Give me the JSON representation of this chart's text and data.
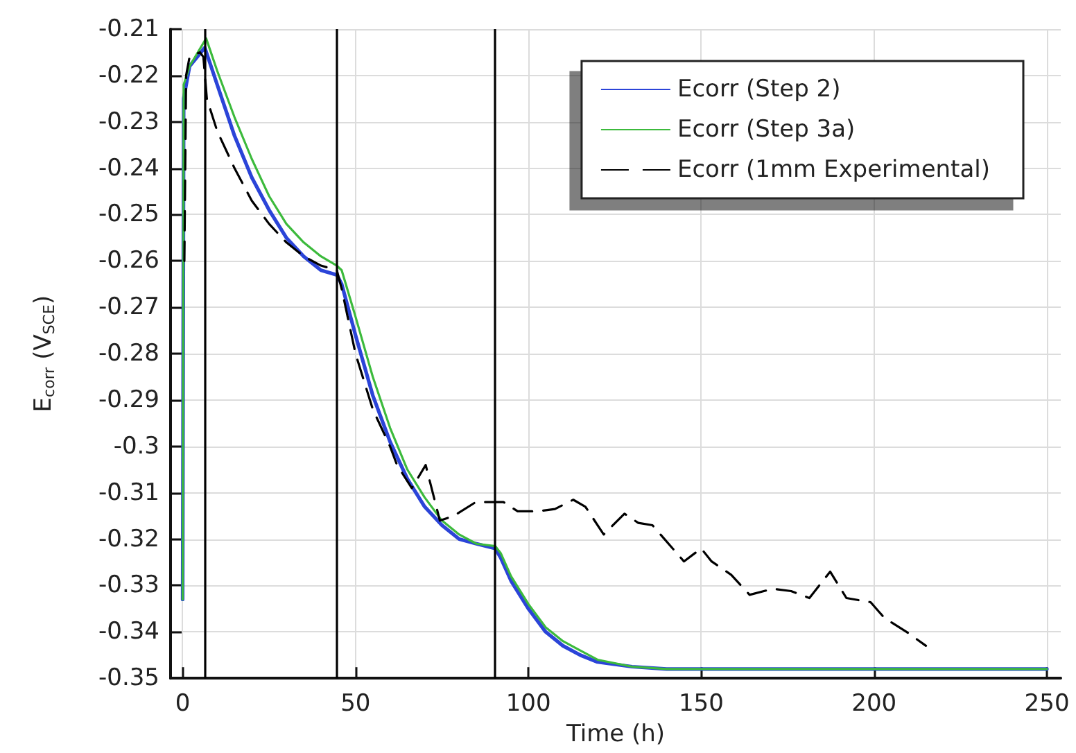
{
  "chart_data": {
    "type": "line",
    "xlabel": "Time (h)",
    "ylabel": "E$_{corr}$ (V$_{SCE}$)",
    "xlim": [
      -3.5,
      254
    ],
    "xticks": [
      0,
      50,
      100,
      150,
      200,
      250
    ],
    "ylim": [
      -0.35,
      -0.21
    ],
    "yticks": [
      -0.35,
      -0.34,
      -0.33,
      -0.32,
      -0.31,
      -0.3,
      -0.29,
      -0.28,
      -0.27,
      -0.26,
      -0.25,
      -0.24,
      -0.23,
      -0.22,
      -0.21
    ],
    "grid": true,
    "legend": "top right",
    "marker": "none",
    "ref_lines": [
      {
        "axis": "x",
        "value": 6.4,
        "color": "#000000"
      },
      {
        "axis": "x",
        "value": 44.6,
        "color": "#000000"
      },
      {
        "axis": "x",
        "value": 90.4,
        "color": "#000000"
      }
    ],
    "series": [
      {
        "name": "Ecorr (Step 2)",
        "color": "#2b44d8",
        "line_style": "solid",
        "x": [
          0,
          0.3,
          2,
          6.4,
          10,
          15,
          20,
          25,
          30,
          35,
          40,
          44.6,
          46,
          50,
          55,
          60,
          65,
          70,
          75,
          80,
          85,
          90.4,
          92,
          95,
          100,
          105,
          110,
          115,
          120,
          130,
          140,
          250
        ],
        "values": [
          -0.333,
          -0.225,
          -0.218,
          -0.214,
          -0.222,
          -0.233,
          -0.242,
          -0.249,
          -0.255,
          -0.259,
          -0.262,
          -0.263,
          -0.265,
          -0.276,
          -0.289,
          -0.299,
          -0.307,
          -0.313,
          -0.317,
          -0.32,
          -0.321,
          -0.322,
          -0.324,
          -0.329,
          -0.335,
          -0.34,
          -0.343,
          -0.345,
          -0.3465,
          -0.3475,
          -0.348,
          -0.348
        ]
      },
      {
        "name": "Ecorr (Step 3a)",
        "color": "#3cba3c",
        "line_style": "solid",
        "x": [
          0,
          0.3,
          2,
          6.8,
          10,
          15,
          20,
          25,
          30,
          35,
          40,
          44.6,
          46,
          50,
          55,
          60,
          65,
          70,
          75,
          80,
          85,
          90.4,
          92,
          95,
          100,
          105,
          110,
          115,
          120,
          130,
          140,
          250
        ],
        "values": [
          -0.333,
          -0.222,
          -0.218,
          -0.212,
          -0.219,
          -0.229,
          -0.238,
          -0.246,
          -0.252,
          -0.256,
          -0.259,
          -0.261,
          -0.262,
          -0.272,
          -0.285,
          -0.296,
          -0.305,
          -0.311,
          -0.316,
          -0.319,
          -0.321,
          -0.3215,
          -0.323,
          -0.328,
          -0.334,
          -0.339,
          -0.342,
          -0.344,
          -0.346,
          -0.3475,
          -0.348,
          -0.348
        ]
      },
      {
        "name": "Ecorr (1mm Experimental)",
        "color": "#000000",
        "line_style": "dashed",
        "x": [
          0.5,
          1,
          2,
          5,
          6,
          7,
          10,
          15,
          20,
          25,
          30,
          35,
          40,
          44.6,
          46,
          50,
          55,
          60,
          62,
          66.3,
          70.3,
          74.4,
          78.4,
          84.8,
          92.8,
          96.9,
          102.5,
          107.7,
          113,
          116.5,
          121.8,
          127.8,
          131.8,
          135.9,
          145,
          150,
          153,
          158.7,
          164,
          170.8,
          176,
          181.3,
          187.3,
          192,
          199,
          203,
          209.4,
          215
        ],
        "values": [
          -0.26,
          -0.22,
          -0.216,
          -0.215,
          -0.216,
          -0.225,
          -0.232,
          -0.24,
          -0.247,
          -0.252,
          -0.256,
          -0.259,
          -0.261,
          -0.262,
          -0.266,
          -0.28,
          -0.292,
          -0.3,
          -0.304,
          -0.309,
          -0.304,
          -0.316,
          -0.315,
          -0.312,
          -0.312,
          -0.314,
          -0.314,
          -0.3135,
          -0.3115,
          -0.313,
          -0.319,
          -0.3145,
          -0.3165,
          -0.317,
          -0.3248,
          -0.322,
          -0.3248,
          -0.3277,
          -0.332,
          -0.3307,
          -0.3312,
          -0.3327,
          -0.327,
          -0.3327,
          -0.3336,
          -0.337,
          -0.34,
          -0.343
        ]
      }
    ]
  }
}
